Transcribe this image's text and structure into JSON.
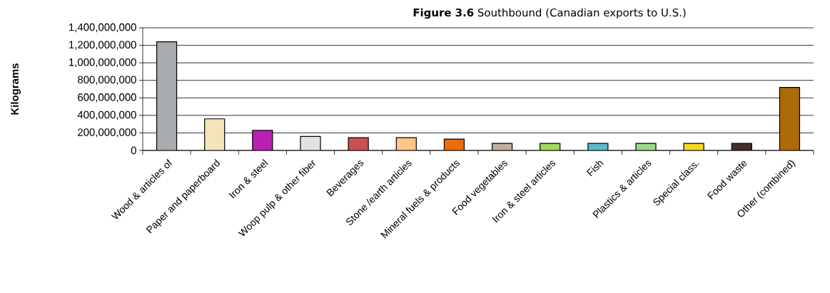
{
  "chart_data": {
    "type": "bar",
    "title": "**Figure 3.6** Southbound (Canadian exports to U.S.)",
    "ylabel": "Kilograms",
    "categories": [
      "Wood & articles of",
      "Paper and paperboard",
      "Iron & steel",
      "Woop pulp & other fiber",
      "Beverages",
      "Stone /earth articles",
      "Mineral fuels & products",
      "Food vegetables",
      "Iron & steel articles",
      "Fish",
      "Plastics & articles",
      "Special class.",
      "Food waste",
      "Other (combined)"
    ],
    "values": [
      1240000000,
      360000000,
      230000000,
      160000000,
      145000000,
      145000000,
      130000000,
      80000000,
      80000000,
      80000000,
      80000000,
      80000000,
      80000000,
      720000000
    ],
    "colors": [
      "#a8acaf",
      "#f5e3bb",
      "#b920b3",
      "#e2e3de",
      "#c85050",
      "#ffc684",
      "#ec6c0b",
      "#c0b09a",
      "#a0d860",
      "#5ab8cc",
      "#a0d888",
      "#f8d820",
      "#452e2e",
      "#ac6a0a"
    ],
    "ylim": [
      0,
      1400000000
    ],
    "yticks": [
      {
        "value": 0,
        "label": "0"
      },
      {
        "value": 200000000,
        "label": "200,000,000"
      },
      {
        "value": 400000000,
        "label": "400,000,000"
      },
      {
        "value": 600000000,
        "label": "600,000,000"
      },
      {
        "value": 800000000,
        "label": "800,000,000"
      },
      {
        "value": 1000000000,
        "label": "1,000,000,000"
      },
      {
        "value": 1200000000,
        "label": "1,200,000,000"
      },
      {
        "value": 1400000000,
        "label": "1,400,000,000"
      }
    ],
    "grid": "y"
  }
}
